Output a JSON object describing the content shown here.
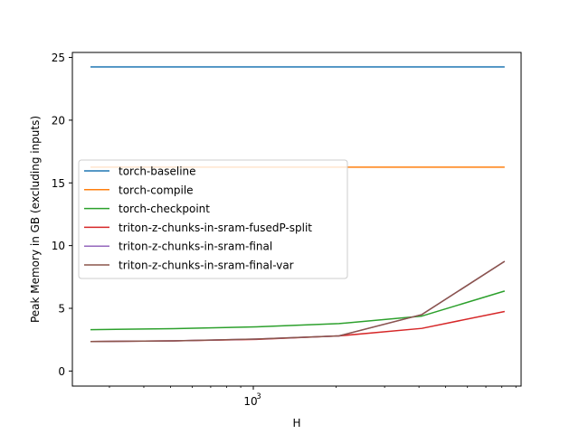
{
  "chart_data": {
    "type": "line",
    "title": "",
    "xlabel": "H",
    "ylabel": "Peak Memory in GB (excluding inputs)",
    "xscale": "log",
    "xlim": [
      220,
      9400
    ],
    "ylim": [
      -1.2,
      25.4
    ],
    "grid": false,
    "legend_position": "center-left",
    "x": [
      256,
      512,
      1024,
      2048,
      4096,
      8192
    ],
    "x_ticks": [
      {
        "value": 1000,
        "label": "10",
        "exponent": "3"
      }
    ],
    "y_ticks": [
      {
        "value": 0,
        "label": "0"
      },
      {
        "value": 5,
        "label": "5"
      },
      {
        "value": 10,
        "label": "10"
      },
      {
        "value": 15,
        "label": "15"
      },
      {
        "value": 20,
        "label": "20"
      },
      {
        "value": 25,
        "label": "25"
      }
    ],
    "series": [
      {
        "name": "torch-baseline",
        "color": "#1f77b4",
        "values": [
          24.25,
          24.25,
          24.25,
          24.25,
          24.25,
          24.25
        ]
      },
      {
        "name": "torch-compile",
        "color": "#ff7f0e",
        "values": [
          16.25,
          16.25,
          16.25,
          16.25,
          16.25,
          16.25
        ]
      },
      {
        "name": "torch-checkpoint",
        "color": "#2ca02c",
        "values": [
          3.3,
          3.38,
          3.52,
          3.78,
          4.38,
          6.38
        ]
      },
      {
        "name": "triton-z-chunks-in-sram-fusedP-split",
        "color": "#d62728",
        "values": [
          2.35,
          2.4,
          2.52,
          2.8,
          3.4,
          4.75
        ]
      },
      {
        "name": "triton-z-chunks-in-sram-final",
        "color": "#9467bd",
        "values": [
          2.35,
          2.4,
          2.55,
          2.8,
          4.5,
          8.75
        ]
      },
      {
        "name": "triton-z-chunks-in-sram-final-var",
        "color": "#8c564b",
        "values": [
          2.35,
          2.4,
          2.55,
          2.8,
          4.5,
          8.75
        ]
      }
    ]
  }
}
